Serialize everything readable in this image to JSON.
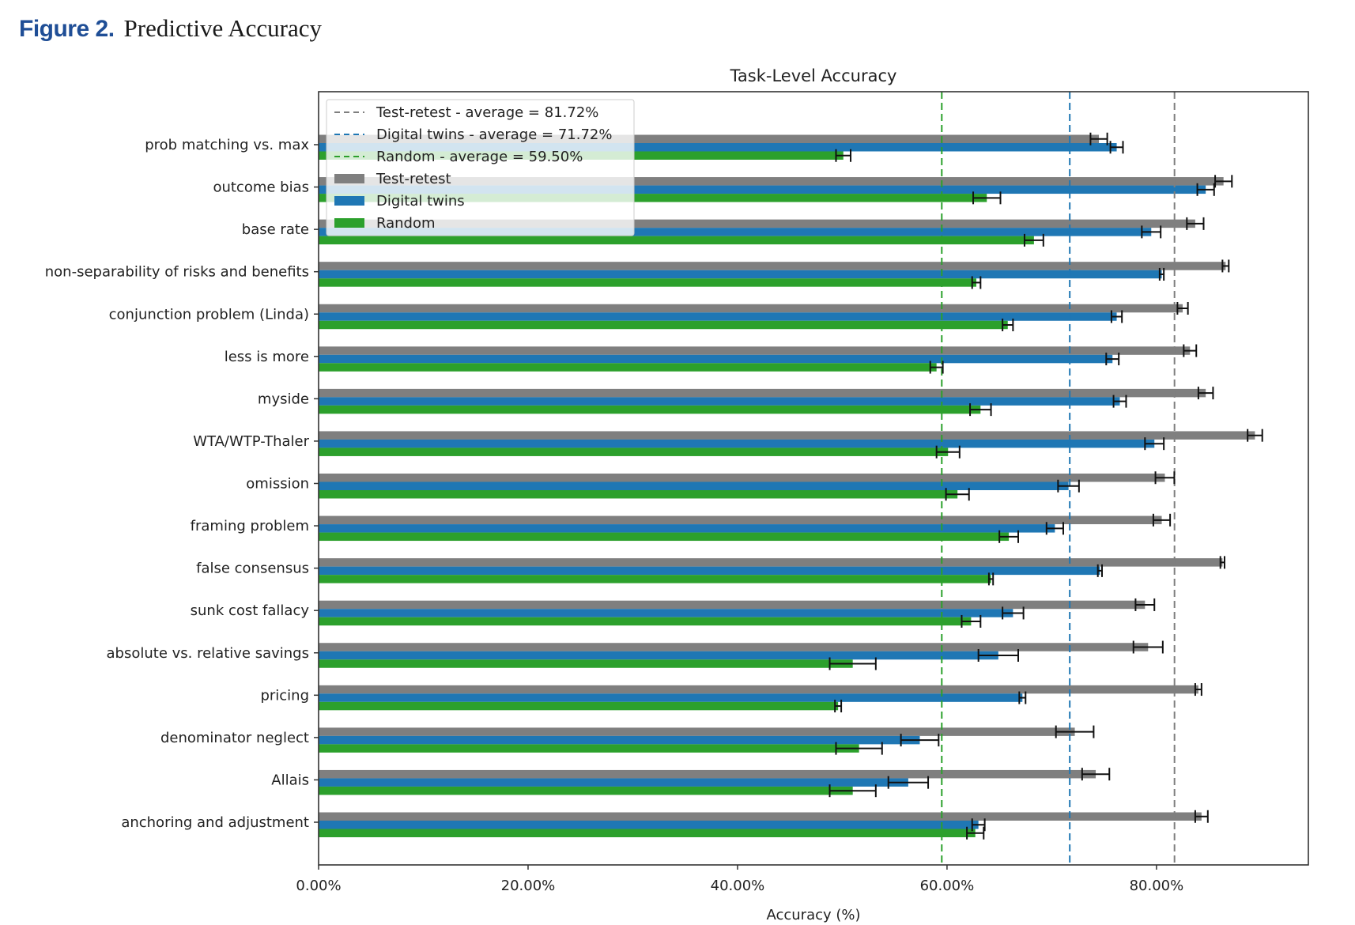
{
  "figure": {
    "number": "Figure 2.",
    "title": "Predictive Accuracy"
  },
  "colors": {
    "test_retest": "#7f7f7f",
    "digital_twins": "#1f77b4",
    "random": "#2ca02c",
    "figure_number": "#1f4e96"
  },
  "chart_data": {
    "type": "bar",
    "orientation": "horizontal",
    "title": "Task-Level Accuracy",
    "xlabel": "Accuracy (%)",
    "ylabel": "",
    "xlim": [
      0,
      94.5
    ],
    "xticks": [
      0,
      20,
      40,
      60,
      80
    ],
    "xtick_labels": [
      "0.00%",
      "20.00%",
      "40.00%",
      "60.00%",
      "80.00%"
    ],
    "grid": false,
    "legend_position": "top-left",
    "categories": [
      "prob matching vs. max",
      "outcome bias",
      "base rate",
      "non-separability of risks and benefits",
      "conjunction problem (Linda)",
      "less is more",
      "myside",
      "WTA/WTP-Thaler",
      "omission",
      "framing problem",
      "false consensus",
      "sunk cost fallacy",
      "absolute vs. relative savings",
      "pricing",
      "denominator neglect",
      "Allais",
      "anchoring and adjustment"
    ],
    "series": [
      {
        "name": "Test-retest",
        "color": "#7f7f7f",
        "values": [
          74.5,
          86.4,
          83.7,
          86.6,
          82.5,
          83.2,
          84.7,
          89.4,
          80.8,
          80.5,
          86.3,
          78.9,
          79.2,
          84.0,
          72.2,
          74.2,
          84.3
        ],
        "errors": [
          0.8,
          0.8,
          0.8,
          0.3,
          0.5,
          0.6,
          0.7,
          0.7,
          0.9,
          0.8,
          0.2,
          0.9,
          1.4,
          0.3,
          1.8,
          1.3,
          0.6
        ]
      },
      {
        "name": "Digital twins",
        "color": "#1f77b4",
        "values": [
          76.2,
          84.7,
          79.5,
          80.5,
          76.2,
          75.8,
          76.5,
          79.8,
          71.6,
          70.3,
          74.6,
          66.3,
          64.9,
          67.2,
          57.4,
          56.3,
          63.0
        ],
        "errors": [
          0.6,
          0.8,
          0.9,
          0.2,
          0.5,
          0.6,
          0.6,
          0.9,
          1.0,
          0.8,
          0.2,
          1.0,
          1.9,
          0.3,
          1.8,
          1.9,
          0.6
        ]
      },
      {
        "name": "Random",
        "color": "#2ca02c",
        "values": [
          50.1,
          63.8,
          68.3,
          62.8,
          65.8,
          59.0,
          63.2,
          60.1,
          61.0,
          65.9,
          64.2,
          62.3,
          51.0,
          49.6,
          51.6,
          51.0,
          62.7
        ],
        "errors": [
          0.7,
          1.3,
          0.9,
          0.4,
          0.5,
          0.6,
          1.0,
          1.1,
          1.1,
          0.9,
          0.2,
          0.9,
          2.2,
          0.3,
          2.2,
          2.2,
          0.8
        ]
      }
    ],
    "reference_lines": [
      {
        "name": "Test-retest - average = 81.72%",
        "value": 81.72,
        "color": "#7f7f7f",
        "style": "dashed"
      },
      {
        "name": "Digital twins - average = 71.72%",
        "value": 71.72,
        "color": "#1f77b4",
        "style": "dashed"
      },
      {
        "name": "Random - average = 59.50%",
        "value": 59.5,
        "color": "#2ca02c",
        "style": "dashed"
      }
    ],
    "legend": [
      {
        "label": "Test-retest - average = 81.72%",
        "kind": "line",
        "color": "#7f7f7f"
      },
      {
        "label": "Digital twins - average = 71.72%",
        "kind": "line",
        "color": "#1f77b4"
      },
      {
        "label": "Random - average = 59.50%",
        "kind": "line",
        "color": "#2ca02c"
      },
      {
        "label": "Test-retest",
        "kind": "patch",
        "color": "#7f7f7f"
      },
      {
        "label": "Digital twins",
        "kind": "patch",
        "color": "#1f77b4"
      },
      {
        "label": "Random",
        "kind": "patch",
        "color": "#2ca02c"
      }
    ]
  }
}
